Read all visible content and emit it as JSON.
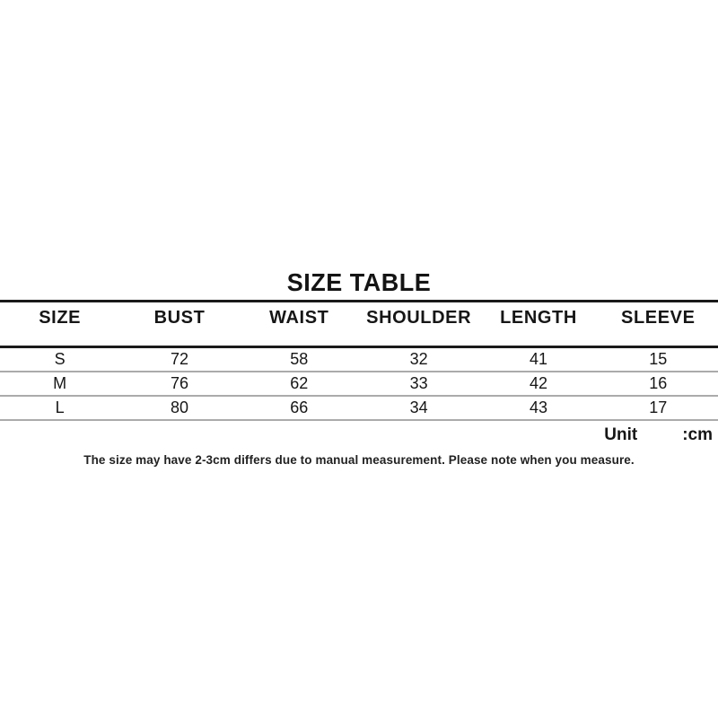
{
  "size_table": {
    "title": "SIZE TABLE",
    "columns": [
      "SIZE",
      "BUST",
      "WAIST",
      "SHOULDER",
      "LENGTH",
      "SLEEVE"
    ],
    "rows": [
      [
        "S",
        "72",
        "58",
        "32",
        "41",
        "15"
      ],
      [
        "M",
        "76",
        "62",
        "33",
        "42",
        "16"
      ],
      [
        "L",
        "80",
        "66",
        "34",
        "43",
        "17"
      ]
    ],
    "unit_label": "Unit",
    "unit_value": ":cm",
    "note": "The size may have 2-3cm differs due to manual measurement. Please note when you measure."
  },
  "colors": {
    "background": "#ffffff",
    "heavy_rule": "#1a1a1a",
    "light_rule": "#ababab",
    "text": "#161616"
  }
}
